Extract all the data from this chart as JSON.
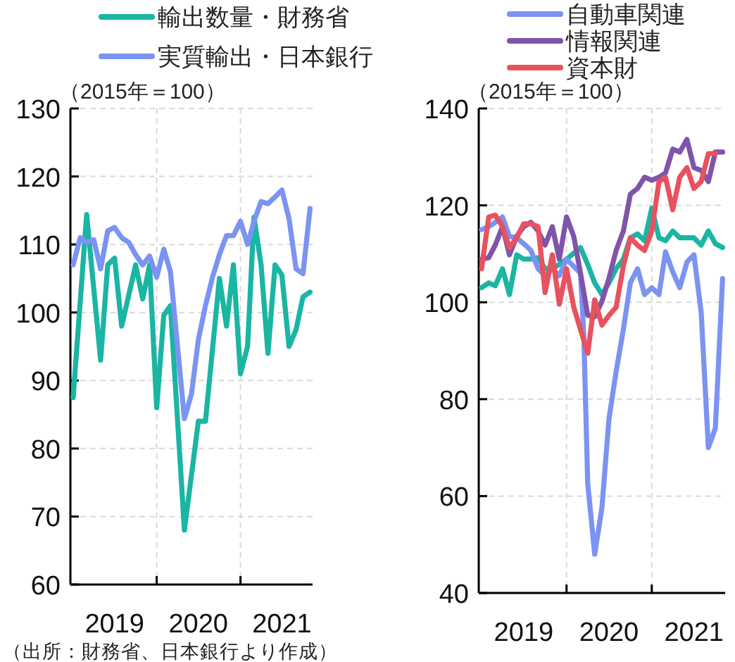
{
  "chart_data": [
    {
      "type": "line",
      "legend": "top",
      "grid": true,
      "line_style": "solid",
      "marker": "none",
      "xlim": [
        "2018-12-20",
        "2021-11-12"
      ],
      "ylim": [
        60,
        130
      ],
      "yticks": [
        60,
        70,
        80,
        90,
        100,
        110,
        120,
        130
      ],
      "xticks": [
        {
          "value": "2020-01",
          "label": null
        },
        {
          "value": "2021-01",
          "label": null
        },
        {
          "value": "2019-07",
          "label": "2019"
        },
        {
          "value": "2020-07",
          "label": "2020"
        },
        {
          "value": "2021-07",
          "label": "2021"
        }
      ],
      "annotations": [
        "（2015年＝100）",
        "（出所：財務省、日本銀行より作成）"
      ],
      "series": [
        {
          "name": "輸出数量・財務省",
          "color": "#1ab5a3",
          "x": [
            "2019-01",
            "2019-03",
            "2019-05",
            "2019-06",
            "2019-07",
            "2019-08",
            "2019-10",
            "2019-11",
            "2019-12",
            "2020-01",
            "2020-02",
            "2020-03",
            "2020-05",
            "2020-07",
            "2020-08",
            "2020-10",
            "2020-11",
            "2020-12",
            "2021-01",
            "2021-02",
            "2021-03",
            "2021-04",
            "2021-05",
            "2021-06",
            "2021-07",
            "2021-08",
            "2021-09",
            "2021-10",
            "2021-11"
          ],
          "values": [
            87.5,
            114.4,
            93,
            107,
            108,
            98,
            107,
            102,
            107,
            86,
            99.6,
            101,
            68,
            84,
            84,
            105,
            98,
            107,
            91,
            95,
            114,
            107,
            94,
            107,
            105.5,
            95,
            97.5,
            102.3,
            103
          ]
        },
        {
          "name": "実質輸出・日本銀行",
          "color": "#7b93f2",
          "x": [
            "2019-01",
            "2019-02",
            "2019-03",
            "2019-04",
            "2019-05",
            "2019-06",
            "2019-07",
            "2019-08",
            "2019-09",
            "2019-10",
            "2019-11",
            "2019-12",
            "2020-01",
            "2020-02",
            "2020-03",
            "2020-04",
            "2020-05",
            "2020-06",
            "2020-07",
            "2020-08",
            "2020-09",
            "2020-10",
            "2020-11",
            "2020-12",
            "2021-01",
            "2021-02",
            "2021-03",
            "2021-04",
            "2021-05",
            "2021-06",
            "2021-07",
            "2021-08",
            "2021-09",
            "2021-10",
            "2021-11"
          ],
          "values": [
            107,
            111,
            110.3,
            110.7,
            106.4,
            112,
            112.5,
            111,
            110.3,
            108.5,
            107,
            108.3,
            105.2,
            109.3,
            106,
            95,
            84.4,
            88,
            96,
            101,
            105.2,
            108.5,
            111.3,
            111.3,
            113.4,
            110,
            113.4,
            116.3,
            116,
            117,
            118,
            113.8,
            106.4,
            105.7,
            115.3
          ]
        }
      ]
    },
    {
      "type": "line",
      "legend": "top",
      "grid": true,
      "line_style": "solid",
      "marker": "none",
      "xlim": [
        "2018-12-20",
        "2021-11-12"
      ],
      "ylim": [
        40,
        140
      ],
      "yticks": [
        40,
        60,
        80,
        100,
        120,
        140
      ],
      "xticks": [
        {
          "value": "2020-01",
          "label": null
        },
        {
          "value": "2021-01",
          "label": null
        },
        {
          "value": "2019-07",
          "label": "2019"
        },
        {
          "value": "2020-07",
          "label": "2020"
        },
        {
          "value": "2021-07",
          "label": "2021"
        }
      ],
      "annotations": [
        "（2015年＝100）"
      ],
      "series": [
        {
          "color": "#1ab5a3",
          "x": [
            "2019-01",
            "2019-02",
            "2019-03",
            "2019-04",
            "2019-05",
            "2019-06",
            "2019-07",
            "2019-08",
            "2019-09",
            "2019-10",
            "2019-11",
            "2019-12",
            "2020-01",
            "2020-03",
            "2020-04",
            "2020-05",
            "2020-06",
            "2020-07",
            "2020-08",
            "2020-09",
            "2020-10",
            "2020-11",
            "2020-12",
            "2021-01",
            "2021-02",
            "2021-03",
            "2021-04",
            "2021-05",
            "2021-06",
            "2021-07",
            "2021-08",
            "2021-09",
            "2021-10",
            "2021-11"
          ],
          "values": [
            103,
            104,
            103.4,
            106.9,
            101.6,
            109.8,
            108.9,
            108.9,
            109.2,
            106.9,
            106.9,
            107.8,
            108.9,
            111.3,
            107.8,
            104,
            101.6,
            104,
            106.9,
            108.9,
            113.3,
            114.1,
            112.7,
            119.4,
            113.3,
            112.7,
            114.7,
            113.3,
            113.3,
            113.3,
            111.8,
            114.7,
            112.1,
            111.3
          ]
        },
        {
          "name": "自動車関連",
          "color": "#7b93f2",
          "x": [
            "2019-01",
            "2019-02",
            "2019-03",
            "2019-04",
            "2019-05",
            "2019-06",
            "2019-07",
            "2019-08",
            "2019-09",
            "2019-10",
            "2019-11",
            "2019-12",
            "2020-01",
            "2020-03",
            "2020-03-15",
            "2020-04",
            "2020-05",
            "2020-06",
            "2020-07",
            "2020-08",
            "2020-09",
            "2020-10",
            "2020-11",
            "2020-12",
            "2021-01",
            "2021-02",
            "2021-03",
            "2021-04",
            "2021-05",
            "2021-06",
            "2021-07",
            "2021-08",
            "2021-09",
            "2021-10",
            "2021-11"
          ],
          "values": [
            115,
            115.6,
            116.5,
            117.6,
            113.6,
            113.3,
            112.1,
            110.7,
            106.9,
            105.5,
            106.9,
            105.5,
            108.9,
            106,
            93.3,
            62.5,
            48,
            57.6,
            75.9,
            85.7,
            94.4,
            104,
            106.9,
            101.6,
            103,
            101.6,
            110.4,
            106.3,
            103,
            108.3,
            109.8,
            98,
            70,
            74,
            104.9
          ]
        },
        {
          "name": "情報関連",
          "color": "#7e55aa",
          "x": [
            "2019-01",
            "2019-02",
            "2019-03",
            "2019-04",
            "2019-05",
            "2019-06",
            "2019-07",
            "2019-08",
            "2019-09",
            "2019-10",
            "2019-11",
            "2019-12",
            "2020-01",
            "2020-02",
            "2020-03",
            "2020-04",
            "2020-05",
            "2020-06",
            "2020-07",
            "2020-08",
            "2020-09",
            "2020-10",
            "2020-11",
            "2020-12",
            "2021-01",
            "2021-02",
            "2021-03",
            "2021-04",
            "2021-05",
            "2021-06",
            "2021-07",
            "2021-08",
            "2021-09",
            "2021-10",
            "2021-11"
          ],
          "values": [
            108.9,
            109.2,
            111.8,
            115.6,
            109.8,
            113.6,
            115.6,
            116.5,
            114.7,
            111.8,
            115.6,
            108.9,
            117.6,
            113.6,
            106,
            97.3,
            97,
            100.2,
            104.9,
            110.7,
            114.7,
            122.3,
            123.5,
            125.8,
            125.2,
            125.8,
            126.7,
            131.6,
            131,
            133.6,
            127.8,
            127.2,
            124.9,
            131,
            131
          ]
        },
        {
          "name": "資本財",
          "color": "#e8525e",
          "x": [
            "2019-01",
            "2019-02",
            "2019-03",
            "2019-04",
            "2019-05",
            "2019-06",
            "2019-07",
            "2019-08",
            "2019-09",
            "2019-10",
            "2019-11",
            "2019-12",
            "2020-01",
            "2020-02",
            "2020-04",
            "2020-05",
            "2020-06",
            "2020-07",
            "2020-08",
            "2020-09",
            "2020-10",
            "2020-11",
            "2020-12",
            "2021-01",
            "2021-02",
            "2021-03",
            "2021-04",
            "2021-05",
            "2021-06",
            "2021-07",
            "2021-08",
            "2021-09",
            "2021-10"
          ],
          "values": [
            106.9,
            117.6,
            118,
            115.6,
            111.3,
            113.3,
            116.2,
            116.2,
            115.6,
            102,
            109.8,
            99.6,
            106.9,
            99,
            89.5,
            100.5,
            95.3,
            97.3,
            99,
            107.5,
            113.3,
            111.8,
            110.7,
            114.7,
            124.9,
            125.8,
            119.1,
            125.8,
            127.8,
            123.5,
            124.9,
            130.7,
            130.7
          ]
        }
      ]
    }
  ]
}
